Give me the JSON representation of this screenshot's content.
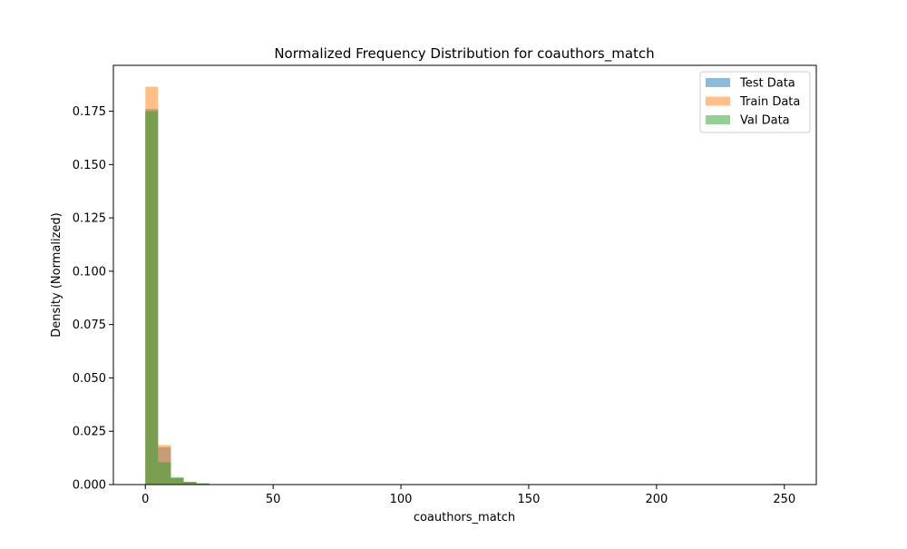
{
  "chart_data": {
    "type": "histogram",
    "title": "Normalized Frequency Distribution for coauthors_match",
    "xlabel": "coauthors_match",
    "ylabel": "Density (Normalized)",
    "xlim": [
      -12.5,
      262.5
    ],
    "ylim": [
      0,
      0.1965
    ],
    "bin_width": 5,
    "x_ticks": [
      0,
      50,
      100,
      150,
      200,
      250
    ],
    "x_tick_labels": [
      "0",
      "50",
      "100",
      "150",
      "200",
      "250"
    ],
    "y_ticks": [
      0,
      0.025,
      0.05,
      0.075,
      0.1,
      0.125,
      0.15,
      0.175
    ],
    "y_tick_labels": [
      "0.000",
      "0.025",
      "0.050",
      "0.075",
      "0.100",
      "0.125",
      "0.150",
      "0.175"
    ],
    "legend_position": "top-right",
    "grid": false,
    "series": [
      {
        "name": "Test Data",
        "color": "#1f77b4",
        "bin_starts": [
          0,
          5,
          10,
          15,
          20,
          25,
          245
        ],
        "values": [
          0.176,
          0.0175,
          0.003,
          0.0012,
          0.0005,
          0.0002,
          0.0003
        ]
      },
      {
        "name": "Train Data",
        "color": "#ff7f0e",
        "bin_starts": [
          0,
          5,
          10,
          15,
          20,
          25
        ],
        "values": [
          0.1865,
          0.0185,
          0.003,
          0.0012,
          0.0005,
          0.0002
        ]
      },
      {
        "name": "Val Data",
        "color": "#2ca02c",
        "bin_starts": [
          0,
          5,
          10,
          15,
          20,
          25
        ],
        "values": [
          0.175,
          0.0105,
          0.0035,
          0.0013,
          0.0006,
          0.0002
        ]
      }
    ]
  }
}
